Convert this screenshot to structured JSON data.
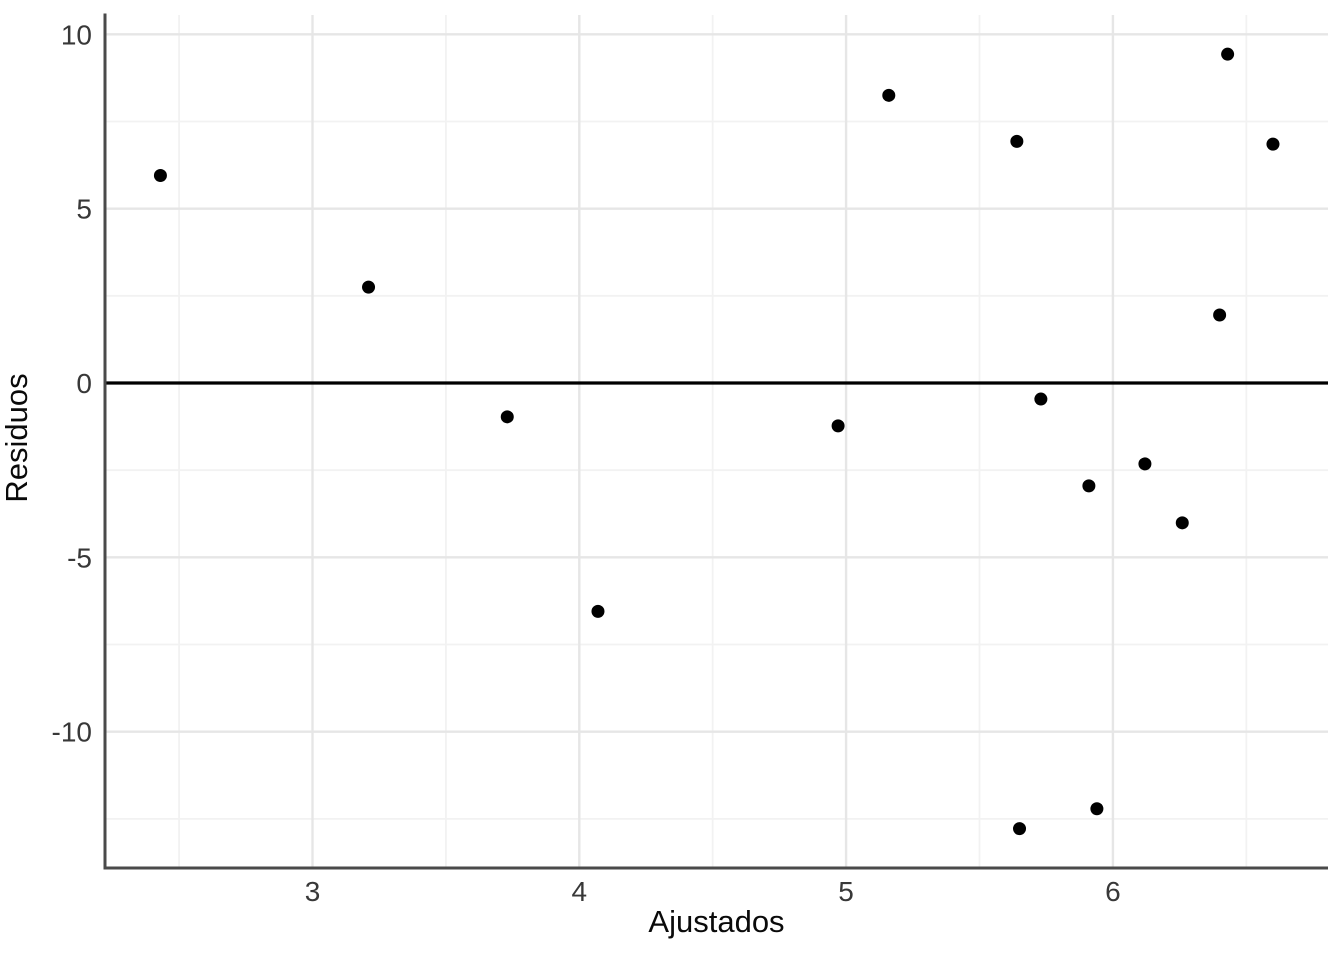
{
  "chart_data": {
    "type": "scatter",
    "title": "",
    "xlabel": "Ajustados",
    "ylabel": "Residuos",
    "points": [
      {
        "x": 2.43,
        "y": 5.95
      },
      {
        "x": 3.21,
        "y": 2.75
      },
      {
        "x": 3.73,
        "y": -0.97
      },
      {
        "x": 4.07,
        "y": -6.55
      },
      {
        "x": 4.97,
        "y": -1.23
      },
      {
        "x": 5.16,
        "y": 8.25
      },
      {
        "x": 5.64,
        "y": 6.93
      },
      {
        "x": 5.73,
        "y": -0.46
      },
      {
        "x": 5.91,
        "y": -2.95
      },
      {
        "x": 6.12,
        "y": -2.32
      },
      {
        "x": 6.26,
        "y": -4.01
      },
      {
        "x": 6.4,
        "y": 1.95
      },
      {
        "x": 6.43,
        "y": 9.43
      },
      {
        "x": 6.6,
        "y": 6.85
      },
      {
        "x": 5.65,
        "y": -12.78
      },
      {
        "x": 5.94,
        "y": -12.21
      }
    ],
    "x_ticks": [
      3,
      4,
      5,
      6
    ],
    "y_ticks": [
      10,
      5,
      0,
      -5,
      -10
    ],
    "x_minor_ticks": [
      2.5,
      3.5,
      4.5,
      5.5,
      6.5
    ],
    "y_minor_ticks": [
      7.5,
      2.5,
      -2.5,
      -7.5,
      -12.5
    ],
    "xlim": [
      2.22,
      6.8
    ],
    "ylim": [
      -13.9,
      10.55
    ],
    "grid": true,
    "legend": false,
    "reference_line_y": 0,
    "point_radius_px": 6.5,
    "colors": {
      "point": "#000000",
      "zero_line": "#000000",
      "axis_line": "#4a4a4a",
      "tick_label": "#383838",
      "axis_title": "#0a0a0a",
      "grid_major": "#e6e6e6",
      "grid_minor": "#f2f2f2",
      "background": "#ffffff"
    }
  }
}
